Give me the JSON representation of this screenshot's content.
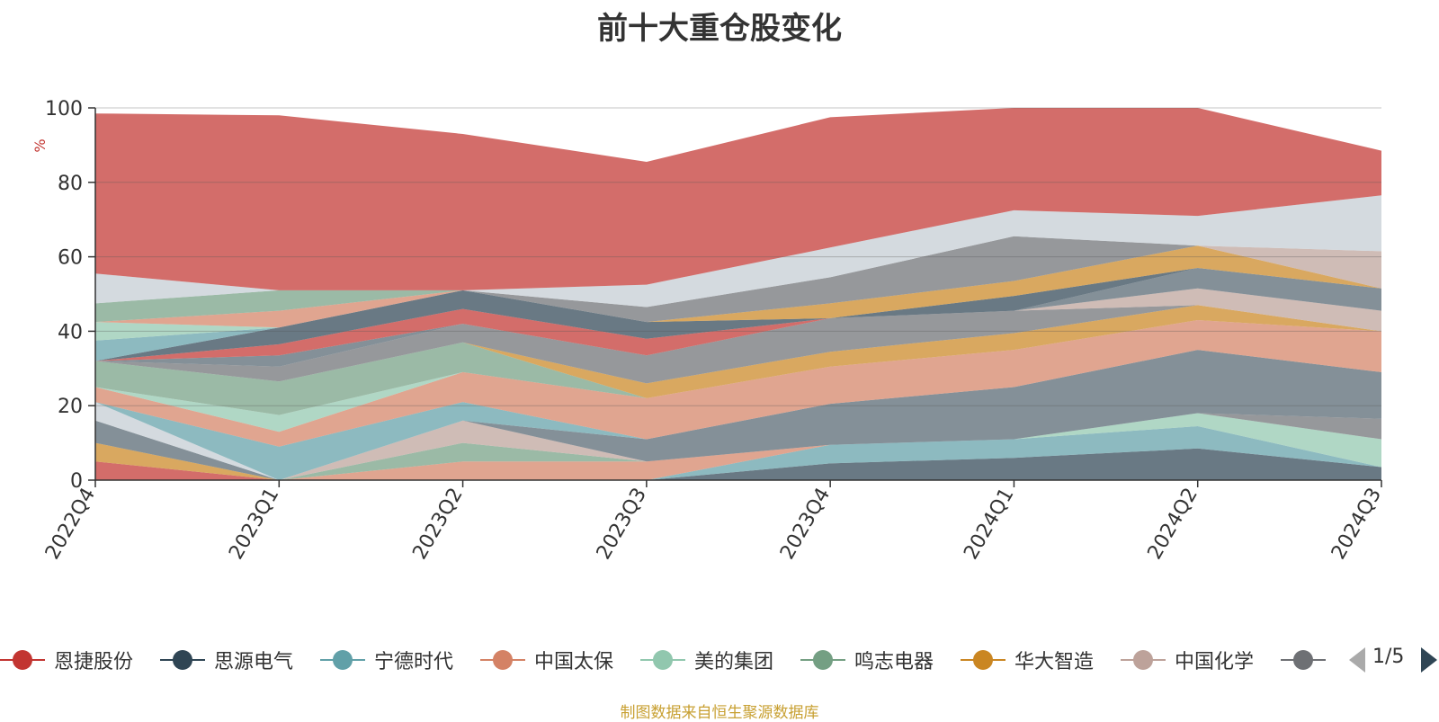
{
  "title": "前十大重仓股变化",
  "source_note": "制图数据来自恒生聚源数据库",
  "pager": {
    "text": "1/5"
  },
  "colors": [
    "#c23531",
    "#2f4554",
    "#61a0a8",
    "#d48265",
    "#91c7ae",
    "#749f83",
    "#ca8622",
    "#bda29a",
    "#6e7074",
    "#546570",
    "#c4ccd3"
  ],
  "chart_data": {
    "type": "area",
    "stacked": true,
    "title": "前十大重仓股变化",
    "ylabel": "%",
    "ylim": [
      0,
      100
    ],
    "yticks": [
      0,
      20,
      40,
      60,
      80,
      100
    ],
    "grid": true,
    "legend_position": "bottom",
    "categories": [
      "2022Q4",
      "2023Q1",
      "2023Q2",
      "2023Q3",
      "2023Q4",
      "2024Q1",
      "2024Q2",
      "2024Q3"
    ],
    "series": [
      {
        "name": "恩捷股份",
        "color": "#c23531",
        "values": [
          5,
          0,
          0,
          0,
          0,
          0,
          0,
          0
        ]
      },
      {
        "name": "思源电气",
        "color": "#2f4554",
        "values": [
          0,
          0,
          0,
          0,
          4.5,
          6,
          8.5,
          3.5
        ]
      },
      {
        "name": "宁德时代",
        "color": "#61a0a8",
        "values": [
          0,
          0,
          0,
          0,
          5,
          5,
          6,
          0
        ]
      },
      {
        "name": "中国太保",
        "color": "#d48265",
        "values": [
          0,
          0,
          5,
          5,
          0,
          0,
          0,
          0
        ]
      },
      {
        "name": "美的集团",
        "color": "#91c7ae",
        "values": [
          0,
          0,
          0,
          0,
          0,
          0,
          3.5,
          7.5
        ]
      },
      {
        "name": "鸣志电器",
        "color": "#749f83",
        "values": [
          0,
          0,
          5,
          0,
          0,
          0,
          0,
          0
        ]
      },
      {
        "name": "华大智造",
        "color": "#ca8622",
        "values": [
          5,
          0,
          0,
          0,
          0,
          0,
          0,
          0
        ]
      },
      {
        "name": "中国化学",
        "color": "#bda29a",
        "values": [
          0,
          0,
          6,
          0,
          0,
          0,
          0,
          0
        ]
      },
      {
        "name": "",
        "color": "#6e7074",
        "values": [
          0,
          0,
          0,
          0,
          0,
          0,
          0,
          5.5
        ]
      },
      {
        "name": "",
        "color": "#546570",
        "values": [
          6,
          0,
          0,
          6,
          11,
          14,
          17,
          12.5
        ]
      },
      {
        "name": "",
        "color": "#c4ccd3",
        "values": [
          5,
          0,
          0,
          0,
          0,
          0,
          0,
          0
        ]
      },
      {
        "name": "",
        "color": "#61a0a8",
        "values": [
          0,
          9,
          5,
          0,
          0,
          0,
          0,
          0
        ]
      },
      {
        "name": "",
        "color": "#d48265",
        "values": [
          4,
          4,
          8,
          11,
          10,
          10,
          8,
          11
        ]
      },
      {
        "name": "",
        "color": "#91c7ae",
        "values": [
          0,
          4.5,
          0,
          0,
          0,
          0,
          0,
          0
        ]
      },
      {
        "name": "",
        "color": "#749f83",
        "values": [
          7,
          9,
          8,
          0,
          0,
          0,
          0,
          0
        ]
      },
      {
        "name": "",
        "color": "#ca8622",
        "values": [
          0,
          0,
          0,
          4,
          4,
          4.5,
          4,
          0
        ]
      },
      {
        "name": "",
        "color": "#6e7074",
        "values": [
          0,
          4,
          5,
          7.5,
          9,
          6,
          0,
          0
        ]
      },
      {
        "name": "",
        "color": "#bda29a",
        "values": [
          0,
          0,
          0,
          0,
          0,
          0,
          4.5,
          5.5
        ]
      },
      {
        "name": "",
        "color": "#546570",
        "values": [
          0,
          3,
          0,
          0,
          0,
          0,
          5.5,
          6
        ]
      },
      {
        "name": "",
        "color": "#c23531",
        "values": [
          0,
          3,
          4,
          4.5,
          0,
          0,
          0,
          0
        ]
      },
      {
        "name": "",
        "color": "#2f4554",
        "values": [
          0,
          4.5,
          5,
          4.5,
          0,
          4,
          0,
          0
        ]
      },
      {
        "name": "",
        "color": "#61a0a8",
        "values": [
          5.5,
          0,
          0,
          0,
          0,
          0,
          0,
          0
        ]
      },
      {
        "name": "",
        "color": "#91c7ae",
        "values": [
          5,
          0,
          0,
          0,
          0,
          0,
          0,
          0
        ]
      },
      {
        "name": "",
        "color": "#d48265",
        "values": [
          0,
          4.5,
          0,
          0,
          0,
          0,
          0,
          0
        ]
      },
      {
        "name": "",
        "color": "#749f83",
        "values": [
          5,
          5.5,
          0,
          0,
          0,
          0,
          0,
          0
        ]
      },
      {
        "name": "",
        "color": "#ca8622",
        "values": [
          0,
          0,
          0,
          0,
          4,
          4,
          6,
          0
        ]
      },
      {
        "name": "",
        "color": "#6e7074",
        "values": [
          0,
          0,
          0,
          4,
          7,
          12,
          0,
          0
        ]
      },
      {
        "name": "",
        "color": "#bda29a",
        "values": [
          0,
          0,
          0,
          0,
          0,
          0,
          0,
          10
        ]
      },
      {
        "name": "",
        "color": "#c4ccd3",
        "values": [
          8,
          0,
          0,
          6,
          8,
          7,
          8,
          15
        ]
      },
      {
        "name": "",
        "color": "#c23531",
        "values": [
          43,
          47,
          42,
          33,
          35,
          27.5,
          29,
          12
        ]
      }
    ]
  },
  "legend": [
    {
      "label": "恩捷股份",
      "color": "#c23531"
    },
    {
      "label": "思源电气",
      "color": "#2f4554"
    },
    {
      "label": "宁德时代",
      "color": "#61a0a8"
    },
    {
      "label": "中国太保",
      "color": "#d48265"
    },
    {
      "label": "美的集团",
      "color": "#91c7ae"
    },
    {
      "label": "鸣志电器",
      "color": "#749f83"
    },
    {
      "label": "华大智造",
      "color": "#ca8622"
    },
    {
      "label": "中国化学",
      "color": "#bda29a"
    },
    {
      "label": "",
      "color": "#6e7074"
    }
  ]
}
